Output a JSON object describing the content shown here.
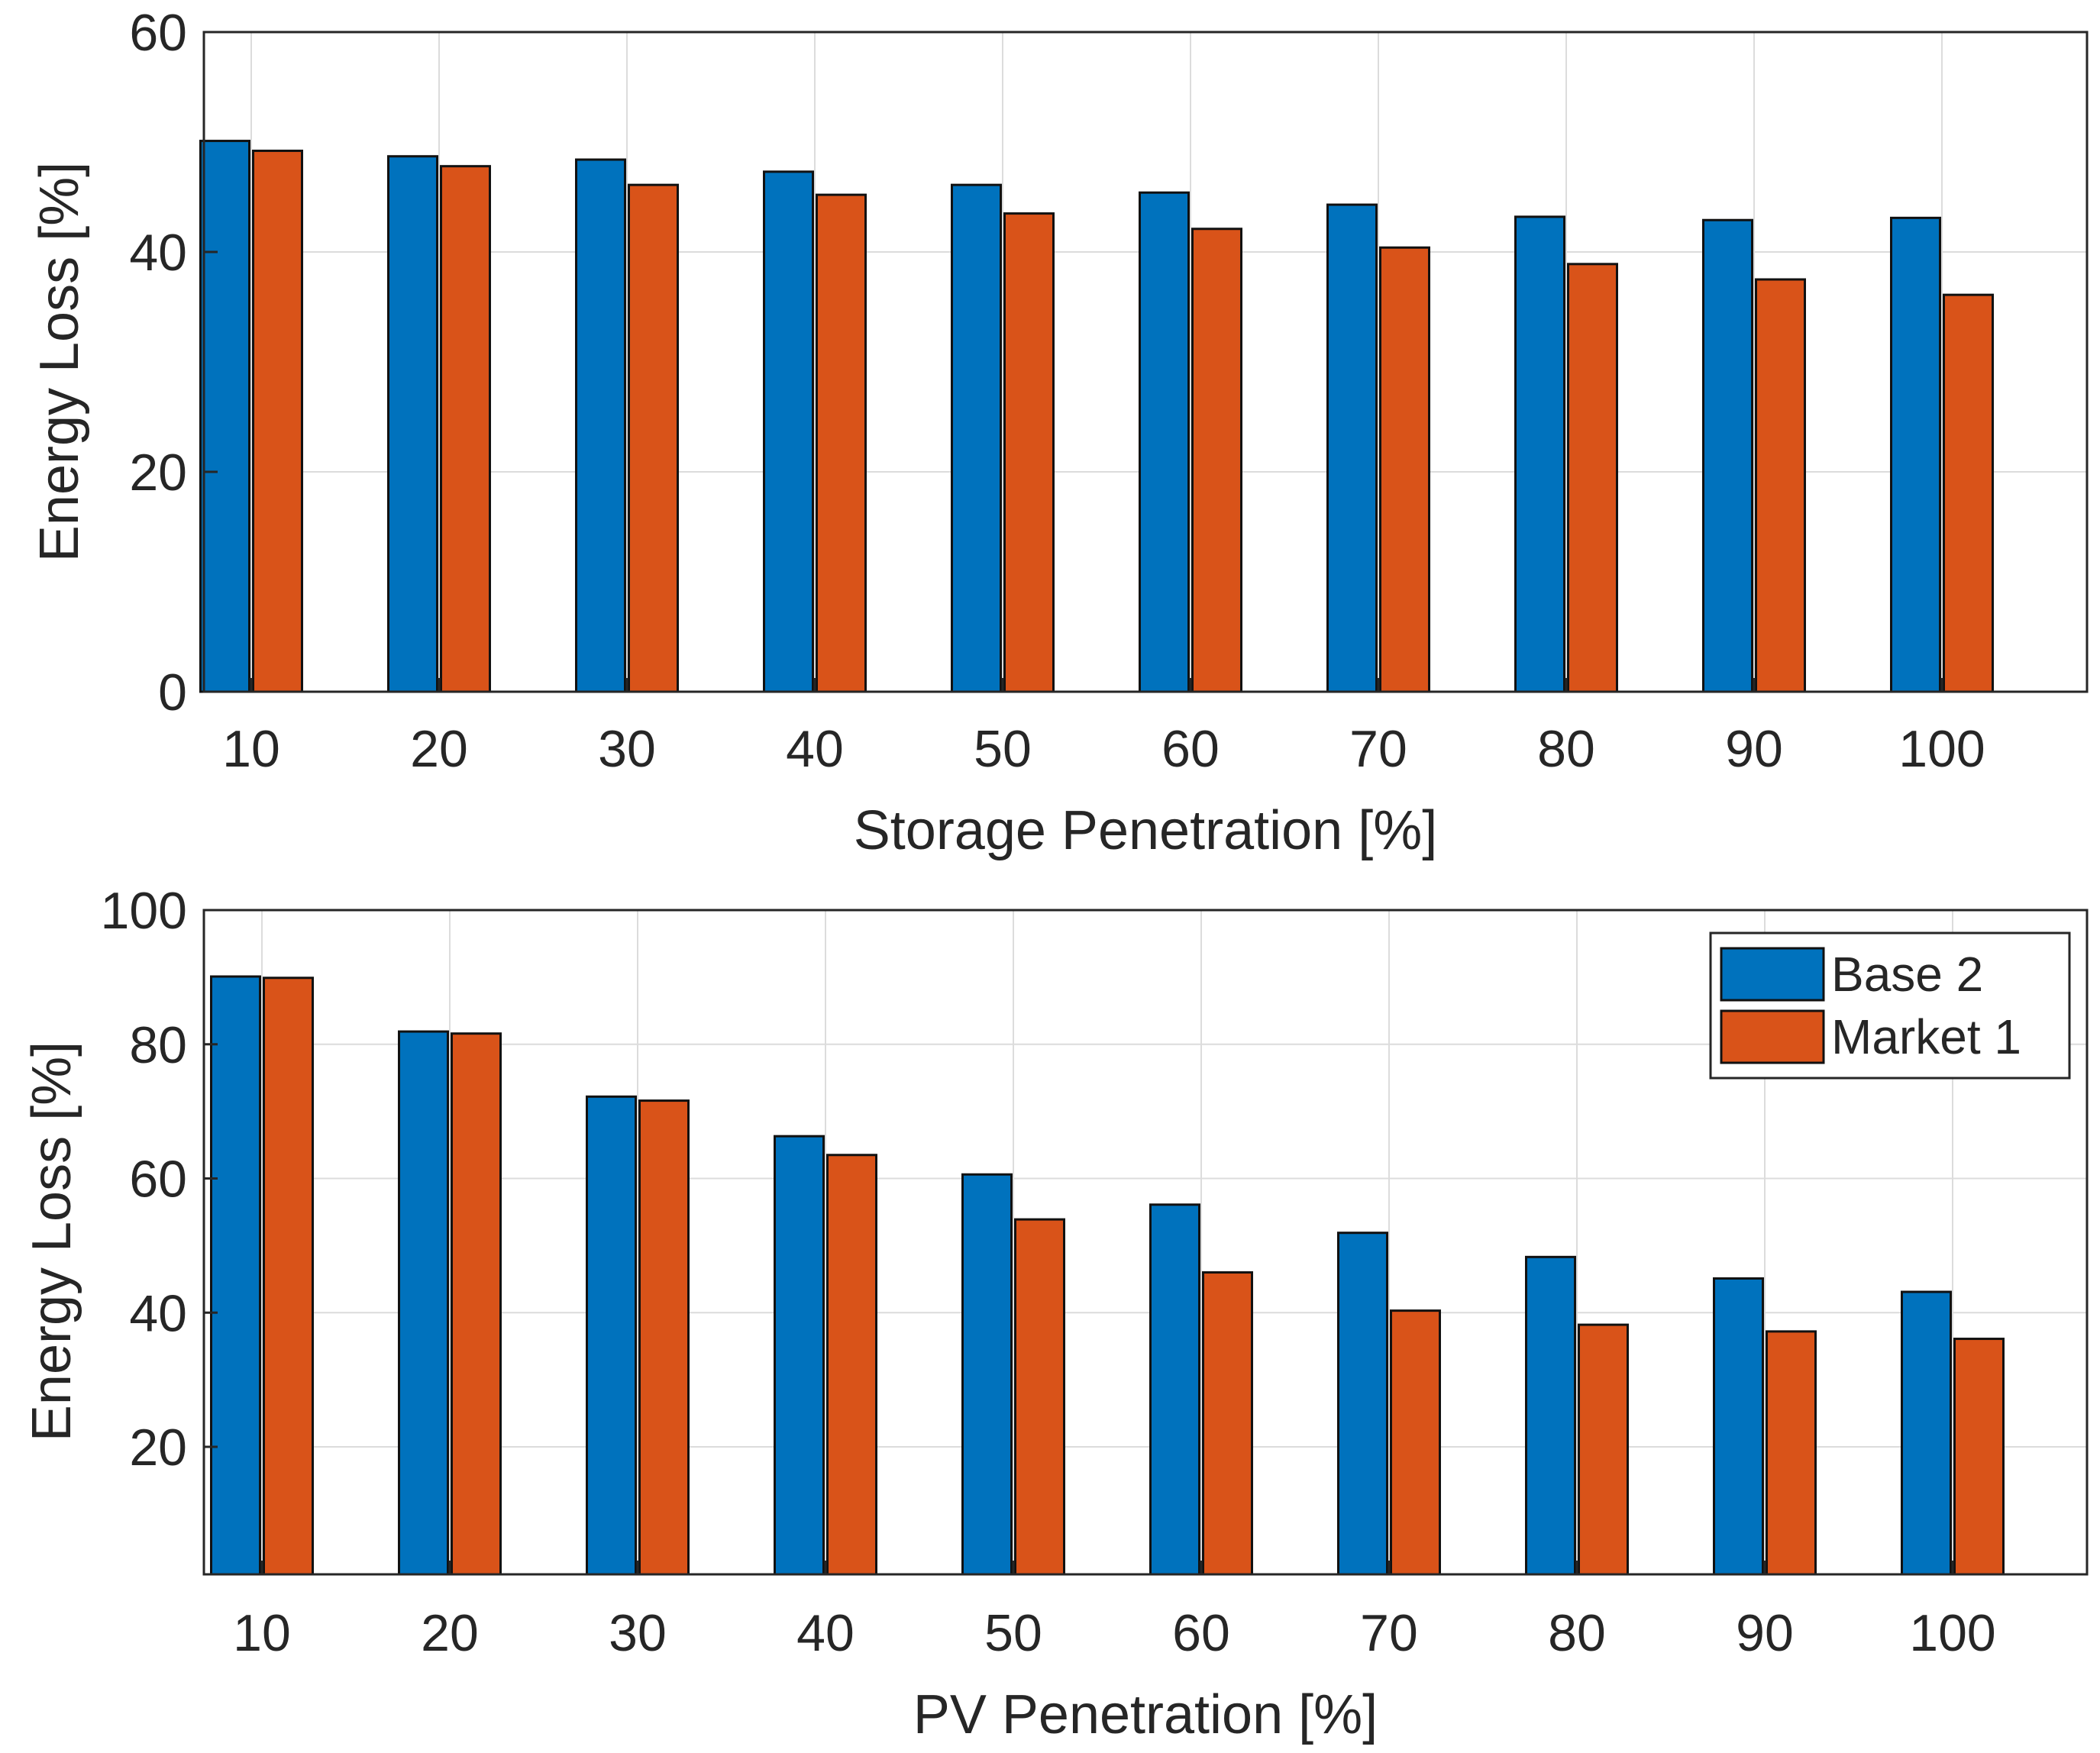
{
  "colors": {
    "base2": "#0072BD",
    "market1": "#D95319"
  },
  "legend": {
    "items": [
      "Base 2",
      "Market 1"
    ],
    "location": "top-right of bottom chart"
  },
  "chart_data": [
    {
      "type": "bar",
      "title": "",
      "categories": [
        "10",
        "20",
        "30",
        "40",
        "50",
        "60",
        "70",
        "80",
        "90",
        "100"
      ],
      "series": [
        {
          "name": "Base 2",
          "values": [
            50.1,
            48.7,
            48.4,
            47.3,
            46.1,
            45.4,
            44.3,
            43.2,
            42.9,
            43.1
          ]
        },
        {
          "name": "Market 1",
          "values": [
            49.2,
            47.8,
            46.1,
            45.2,
            43.5,
            42.1,
            40.4,
            38.9,
            37.5,
            36.1
          ]
        }
      ],
      "xlabel": "Storage Penetration [%]",
      "ylabel": "Energy Loss [%]",
      "ylim": [
        0,
        60
      ],
      "yticks": [
        "0",
        "20",
        "40",
        "60"
      ],
      "grid": true
    },
    {
      "type": "bar",
      "title": "",
      "categories": [
        "10",
        "20",
        "30",
        "40",
        "50",
        "60",
        "70",
        "80",
        "90",
        "100"
      ],
      "series": [
        {
          "name": "Base 2",
          "values": [
            90.1,
            81.9,
            72.2,
            66.3,
            60.6,
            56.1,
            51.9,
            48.3,
            45.1,
            43.1
          ]
        },
        {
          "name": "Market 1",
          "values": [
            89.9,
            81.6,
            71.6,
            63.5,
            53.9,
            46.0,
            40.3,
            38.2,
            37.2,
            36.1
          ]
        }
      ],
      "xlabel": "PV Penetration [%]",
      "ylabel": "Energy Loss [%]",
      "ylim": [
        1,
        100
      ],
      "yticks": [
        "20",
        "40",
        "60",
        "80",
        "100"
      ],
      "grid": true
    }
  ]
}
